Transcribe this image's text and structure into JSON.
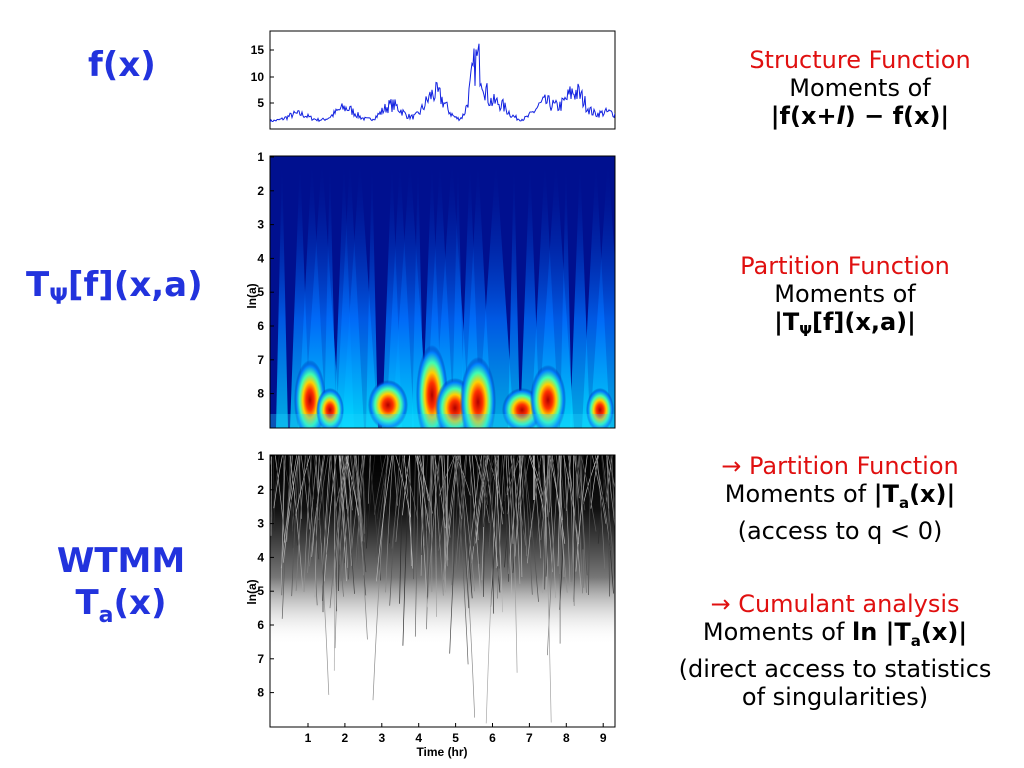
{
  "left_labels": {
    "fx": "f(x)",
    "transform": {
      "main": "T",
      "sub": "Ψ",
      "rest": "[f](x,a)"
    },
    "wtmm": {
      "line1": "WTMM",
      "main": "T",
      "sub": "a",
      "rest": "(x)"
    }
  },
  "right_text": {
    "structure": {
      "title": "Structure Function",
      "line2": "Moments of",
      "line3_pre": "|f(x+",
      "line3_l": "l",
      "line3_post": ") − f(x)|"
    },
    "partition": {
      "title": "Partition Function",
      "line2": "Moments of",
      "line3_pre": "|T",
      "line3_sub": "Ψ",
      "line3_post": "[f](x,a)|"
    },
    "partition2": {
      "arrow": "→",
      "title": "Partition Function",
      "line2_pre": "Moments of ",
      "line2_b1": "|T",
      "line2_sub": "a",
      "line2_b2": "(x)|",
      "line3": "(access to q < 0)"
    },
    "cumulant": {
      "arrow": "→",
      "title": "Cumulant analysis",
      "line2_pre": "Moments of ",
      "line2_b1": "ln |T",
      "line2_sub": "a",
      "line2_b2": "(x)|",
      "line3": "(direct access to statistics",
      "line4": "of singularities)"
    }
  },
  "plots": {
    "signal": {
      "yticks": [
        "15",
        "10",
        "5"
      ]
    },
    "cwt": {
      "ylabel": "ln(a)",
      "yticks": [
        "1",
        "2",
        "3",
        "4",
        "5",
        "6",
        "7",
        "8"
      ]
    },
    "wtmm": {
      "ylabel": "ln(a)",
      "yticks": [
        "1",
        "2",
        "3",
        "4",
        "5",
        "6",
        "7",
        "8"
      ],
      "xticks": [
        "1",
        "2",
        "3",
        "4",
        "5",
        "6",
        "7",
        "8",
        "9"
      ],
      "xlabel": "Time (hr)"
    }
  },
  "colors": {
    "label_blue": "#2233dd",
    "title_red": "#e01010",
    "signal": "#1020e0",
    "cwt_bg": "#00108f"
  }
}
